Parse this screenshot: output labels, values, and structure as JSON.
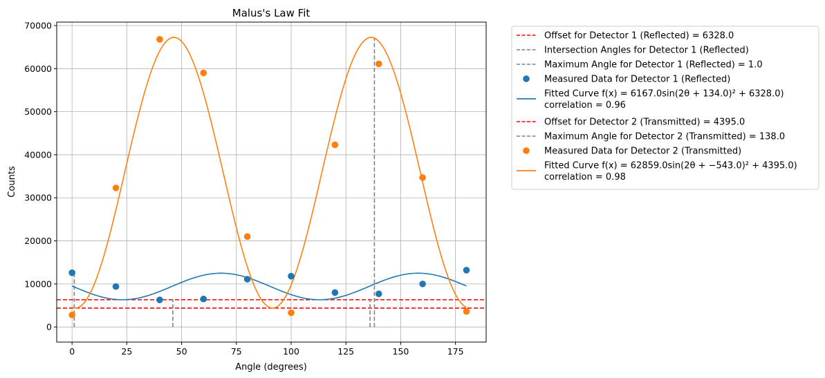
{
  "chart_data": {
    "type": "scatter",
    "title": "Malus's Law Fit",
    "xlabel": "Angle (degrees)",
    "ylabel": "Counts",
    "xlim": [
      -7,
      189
    ],
    "ylim": [
      -3500,
      70800
    ],
    "xticks": [
      0,
      25,
      50,
      75,
      100,
      125,
      150,
      175
    ],
    "yticks": [
      0,
      10000,
      20000,
      30000,
      40000,
      50000,
      60000,
      70000
    ],
    "xtick_labels": [
      "0",
      "25",
      "50",
      "75",
      "100",
      "125",
      "150",
      "175"
    ],
    "ytick_labels": [
      "0",
      "10000",
      "20000",
      "30000",
      "40000",
      "50000",
      "60000",
      "70000"
    ],
    "grid": true,
    "legend_position": "outside-right",
    "colors": {
      "detector1": "#1f77b4",
      "detector2": "#ff7f0e",
      "offset": "#ff0000",
      "marker_line": "#808080"
    },
    "series": [
      {
        "name": "Measured Data for Detector 1 (Reflected)",
        "kind": "points",
        "color": "#1f77b4",
        "x": [
          0,
          20,
          40,
          60,
          80,
          100,
          120,
          140,
          160,
          180
        ],
        "y": [
          12600,
          9400,
          6300,
          6500,
          11100,
          11800,
          8000,
          7700,
          10000,
          13200
        ]
      },
      {
        "name": "Measured Data for Detector 2 (Transmitted)",
        "kind": "points",
        "color": "#ff7f0e",
        "x": [
          0,
          20,
          40,
          60,
          80,
          100,
          120,
          140,
          160,
          180
        ],
        "y": [
          2800,
          32300,
          66800,
          59000,
          21000,
          3300,
          42300,
          61100,
          34700,
          3600
        ]
      },
      {
        "name": "Fitted Curve 1",
        "kind": "curve",
        "color": "#1f77b4",
        "amplitude": 6167.0,
        "phase": 134.0,
        "offset": 6328.0
      },
      {
        "name": "Fitted Curve 2",
        "kind": "curve",
        "color": "#ff7f0e",
        "amplitude": 62859.0,
        "phase": -543.0,
        "offset": 4395.0
      }
    ],
    "offset_lines": [
      6328.0,
      4395.0
    ],
    "marker_lines": [
      {
        "x": 1.0,
        "y": 12495.0
      },
      {
        "x": 46.0,
        "y": 6328.0
      },
      {
        "x": 136.0,
        "y": 6328.0
      },
      {
        "x": 138.0,
        "y": 67254.0
      }
    ],
    "legend": [
      {
        "type": "dashed",
        "color": "#ff0000",
        "label": "Offset for Detector 1 (Reflected) = 6328.0"
      },
      {
        "type": "dashed",
        "color": "#808080",
        "label": "Intersection Angles for Detector 1 (Reflected)"
      },
      {
        "type": "dashed",
        "color": "#808080",
        "label": "Maximum Angle for Detector 1 (Reflected) = 1.0"
      },
      {
        "type": "dot",
        "color": "#1f77b4",
        "label": "Measured Data for Detector 1 (Reflected)"
      },
      {
        "type": "line",
        "color": "#1f77b4",
        "label": "Fitted Curve f(x) = 6167.0sin(2θ + 134.0)² + 6328.0)",
        "label2": "correlation = 0.96"
      },
      {
        "type": "dashed",
        "color": "#ff0000",
        "label": "Offset for Detector 2 (Transmitted) = 4395.0"
      },
      {
        "type": "dashed",
        "color": "#808080",
        "label": "Maximum Angle for Detector 2 (Transmitted) = 138.0"
      },
      {
        "type": "dot",
        "color": "#ff7f0e",
        "label": "Measured Data for Detector 2 (Transmitted)"
      },
      {
        "type": "line",
        "color": "#ff7f0e",
        "label": "Fitted Curve f(x) = 62859.0sin(2θ + −543.0)² + 4395.0)",
        "label2": "correlation = 0.98"
      }
    ]
  }
}
